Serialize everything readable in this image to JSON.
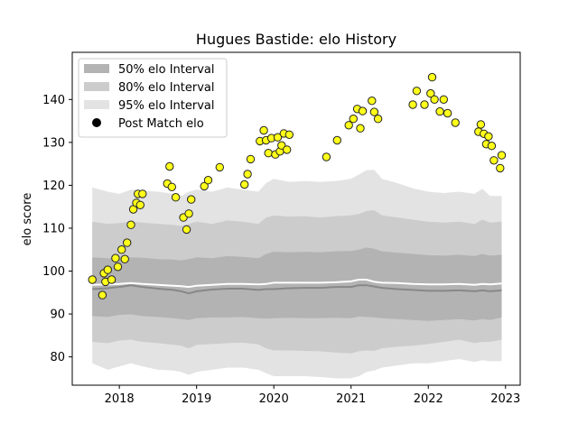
{
  "chart_data": {
    "type": "scatter",
    "title": "Hugues Bastide: elo History",
    "xlabel": "",
    "ylabel": "elo score",
    "xlim": [
      2017.39,
      2023.19
    ],
    "ylim": [
      73.4,
      151.0
    ],
    "x_ticks": [
      2018,
      2019,
      2020,
      2021,
      2022,
      2023
    ],
    "x_tick_labels": [
      "2018",
      "2019",
      "2020",
      "2021",
      "2022",
      "2023"
    ],
    "y_ticks": [
      80,
      90,
      100,
      110,
      120,
      130,
      140
    ],
    "y_tick_labels": [
      "80",
      "90",
      "100",
      "110",
      "120",
      "130",
      "140"
    ],
    "grid": false,
    "legend_position": "top-left",
    "legend": [
      {
        "label": "50% elo Interval",
        "kind": "band",
        "color": "#b3b3b3"
      },
      {
        "label": "80% elo Interval",
        "kind": "band",
        "color": "#cccccc"
      },
      {
        "label": "95% elo Interval",
        "kind": "band",
        "color": "#e3e3e3"
      },
      {
        "label": "Post Match elo",
        "kind": "marker",
        "color": "#000000"
      }
    ],
    "colors": {
      "band50": "#b3b3b3",
      "band80": "#cccccc",
      "band95": "#e3e3e3",
      "median_line": "#888888",
      "mean_line": "#ffffff",
      "marker_fill": "#ffff19",
      "marker_edge": "#222222"
    },
    "intervals": {
      "x": [
        2017.65,
        2017.85,
        2018.0,
        2018.15,
        2018.3,
        2018.5,
        2018.7,
        2018.8,
        2018.9,
        2019.0,
        2019.2,
        2019.4,
        2019.6,
        2019.8,
        2019.9,
        2020.0,
        2020.2,
        2020.4,
        2020.6,
        2020.8,
        2021.0,
        2021.1,
        2021.2,
        2021.3,
        2021.4,
        2021.6,
        2021.8,
        2022.0,
        2022.2,
        2022.4,
        2022.6,
        2022.7,
        2022.8,
        2022.95
      ],
      "band95_upper": [
        119.5,
        118.5,
        118.0,
        119.0,
        118.8,
        118.5,
        118.0,
        117.5,
        118.5,
        119.0,
        118.5,
        119.5,
        119.0,
        118.5,
        120.5,
        121.5,
        120.8,
        121.0,
        120.8,
        121.0,
        121.5,
        122.5,
        123.5,
        123.6,
        121.5,
        120.5,
        119.3,
        118.5,
        118.2,
        118.5,
        118.0,
        119.2,
        117.5,
        117.5
      ],
      "band80_upper": [
        111.5,
        111.0,
        111.2,
        111.5,
        111.3,
        111.0,
        110.8,
        110.5,
        111.0,
        111.5,
        111.0,
        111.8,
        111.5,
        111.0,
        112.5,
        113.0,
        112.7,
        112.8,
        112.5,
        112.8,
        113.0,
        113.3,
        114.0,
        114.2,
        113.0,
        112.5,
        112.0,
        111.5,
        111.3,
        111.5,
        111.0,
        112.0,
        111.3,
        111.5
      ],
      "band50_upper": [
        103.2,
        103.0,
        103.0,
        103.2,
        103.1,
        102.8,
        102.7,
        102.5,
        102.8,
        103.2,
        103.0,
        103.5,
        103.3,
        103.0,
        104.0,
        104.5,
        104.4,
        104.5,
        104.4,
        104.6,
        104.7,
        105.0,
        105.5,
        105.2,
        104.6,
        104.3,
        104.0,
        103.7,
        103.6,
        103.8,
        103.5,
        104.0,
        103.6,
        103.8
      ],
      "mean": [
        96.8,
        96.9,
        97.0,
        97.2,
        97.0,
        96.8,
        96.6,
        96.5,
        96.3,
        96.6,
        96.8,
        97.0,
        97.0,
        96.9,
        97.0,
        97.3,
        97.3,
        97.3,
        97.3,
        97.4,
        97.6,
        98.0,
        98.0,
        97.5,
        97.3,
        97.2,
        97.0,
        96.9,
        96.9,
        97.0,
        96.8,
        97.0,
        96.9,
        97.1
      ],
      "median": [
        95.8,
        96.0,
        96.3,
        96.7,
        96.3,
        95.9,
        95.6,
        95.3,
        94.8,
        95.3,
        95.7,
        95.9,
        95.9,
        95.6,
        95.8,
        95.8,
        96.0,
        96.1,
        96.1,
        96.3,
        96.3,
        96.7,
        96.7,
        96.4,
        96.1,
        95.8,
        95.6,
        95.4,
        95.4,
        95.5,
        95.3,
        95.5,
        95.3,
        95.5
      ],
      "band50_lower": [
        89.5,
        89.3,
        89.8,
        89.9,
        89.5,
        89.3,
        89.0,
        88.8,
        88.6,
        89.0,
        89.2,
        89.2,
        89.3,
        89.0,
        88.9,
        89.0,
        89.1,
        89.0,
        89.0,
        89.1,
        89.0,
        89.4,
        89.3,
        89.2,
        89.0,
        88.8,
        88.6,
        88.4,
        88.6,
        88.8,
        88.5,
        88.8,
        88.6,
        89.2
      ],
      "band80_lower": [
        83.5,
        83.2,
        83.8,
        84.0,
        83.5,
        83.2,
        82.8,
        82.6,
        82.0,
        82.8,
        83.0,
        83.2,
        83.3,
        82.9,
        82.0,
        81.5,
        81.5,
        81.4,
        81.3,
        81.0,
        80.8,
        81.3,
        81.5,
        81.4,
        82.0,
        82.4,
        82.6,
        83.0,
        83.5,
        84.0,
        83.2,
        83.5,
        83.5,
        84.0
      ],
      "band95_lower": [
        78.5,
        77.0,
        77.8,
        78.5,
        77.8,
        77.0,
        76.8,
        76.5,
        75.8,
        76.5,
        77.0,
        77.5,
        77.5,
        77.0,
        76.2,
        75.5,
        75.5,
        75.5,
        75.3,
        75.0,
        75.0,
        75.5,
        76.5,
        76.8,
        77.5,
        78.0,
        78.5,
        78.5,
        79.0,
        79.5,
        78.8,
        79.2,
        79.0,
        79.0
      ]
    },
    "points": {
      "x": [
        2017.65,
        2017.78,
        2017.8,
        2017.82,
        2017.85,
        2017.9,
        2017.95,
        2017.98,
        2018.03,
        2018.07,
        2018.1,
        2018.15,
        2018.18,
        2018.22,
        2018.24,
        2018.27,
        2018.3,
        2018.62,
        2018.65,
        2018.68,
        2018.73,
        2018.83,
        2018.87,
        2018.9,
        2018.93,
        2019.1,
        2019.15,
        2019.3,
        2019.62,
        2019.66,
        2019.7,
        2019.82,
        2019.87,
        2019.9,
        2019.93,
        2019.97,
        2020.02,
        2020.05,
        2020.08,
        2020.1,
        2020.13,
        2020.17,
        2020.2,
        2020.68,
        2020.82,
        2020.97,
        2021.03,
        2021.08,
        2021.12,
        2021.15,
        2021.27,
        2021.3,
        2021.35,
        2021.8,
        2021.85,
        2021.95,
        2022.03,
        2022.05,
        2022.08,
        2022.15,
        2022.2,
        2022.25,
        2022.35,
        2022.65,
        2022.68,
        2022.72,
        2022.75,
        2022.78,
        2022.82,
        2022.85,
        2022.93,
        2022.95
      ],
      "y": [
        98.0,
        94.4,
        99.5,
        97.5,
        100.3,
        98.0,
        103.0,
        101.0,
        105.0,
        102.8,
        106.6,
        110.8,
        114.4,
        115.9,
        118.0,
        115.4,
        118.0,
        120.4,
        124.4,
        119.6,
        117.2,
        112.5,
        109.7,
        113.4,
        116.7,
        119.8,
        121.2,
        124.2,
        120.2,
        122.6,
        126.1,
        130.3,
        132.8,
        130.5,
        127.5,
        131.0,
        127.2,
        131.2,
        127.9,
        129.3,
        132.1,
        128.3,
        131.8,
        126.6,
        130.5,
        134.0,
        135.5,
        137.8,
        133.3,
        137.3,
        139.7,
        137.1,
        135.5,
        138.8,
        142.0,
        138.8,
        141.4,
        145.2,
        140.0,
        137.2,
        140.0,
        136.8,
        134.6,
        132.5,
        134.2,
        132.0,
        129.6,
        131.4,
        129.2,
        125.8,
        124.0,
        127.0
      ]
    }
  }
}
